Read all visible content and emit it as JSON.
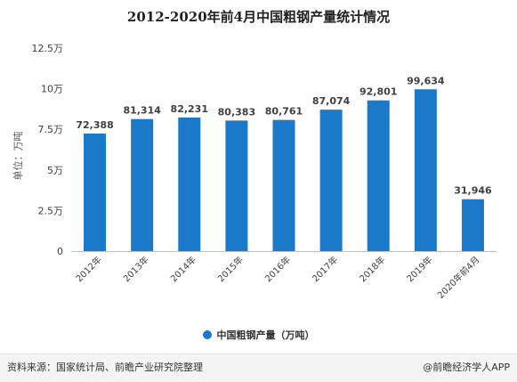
{
  "chart_data": {
    "type": "bar",
    "title": "2012-2020年前4月中国粗钢产量统计情况",
    "ylabel": "单位：万吨",
    "xlabel": "",
    "categories": [
      "2012年",
      "2013年",
      "2014年",
      "2015年",
      "2016年",
      "2017年",
      "2018年",
      "2019年",
      "2020年前4月"
    ],
    "series": [
      {
        "name": "中国粗钢产量（万吨）",
        "values": [
          72388,
          81314,
          82231,
          80383,
          80761,
          87074,
          92801,
          99634,
          31946
        ]
      }
    ],
    "data_labels": [
      "72,388",
      "81,314",
      "82,231",
      "80,383",
      "80,761",
      "87,074",
      "92,801",
      "99,634",
      "31,946"
    ],
    "ylim": [
      0,
      125000
    ],
    "yticks": [
      {
        "value": 0,
        "label": "0"
      },
      {
        "value": 25000,
        "label": "2.5万"
      },
      {
        "value": 50000,
        "label": "5万"
      },
      {
        "value": 75000,
        "label": "7.5万"
      },
      {
        "value": 100000,
        "label": "10万"
      },
      {
        "value": 125000,
        "label": "12.5万"
      }
    ],
    "grid": false,
    "legend_position": "bottom",
    "bar_color": "#1a7ac9"
  },
  "legend": {
    "label": "中国粗钢产量（万吨）"
  },
  "footer": {
    "source": "资料来源：国家统计局、前瞻产业研究院整理",
    "brand": "@前瞻经济学人APP"
  }
}
